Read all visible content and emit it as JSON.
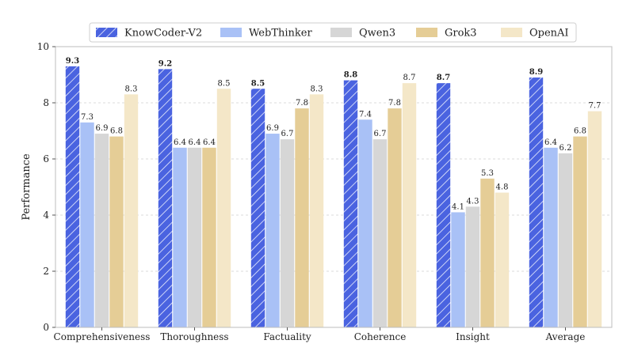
{
  "chart_data": {
    "type": "bar",
    "title": "",
    "xlabel": "",
    "ylabel": "Performance",
    "ylim": [
      0,
      10
    ],
    "yticks": [
      0,
      2,
      4,
      6,
      8,
      10
    ],
    "grid": "y",
    "legend_position": "top-center",
    "categories": [
      "Comprehensiveness",
      "Thoroughness",
      "Factuality",
      "Coherence",
      "Insight",
      "Average"
    ],
    "series": [
      {
        "name": "KnowCoder-V2",
        "color": "#4a63e0",
        "hatched": true,
        "bold_labels": true,
        "values": [
          9.3,
          9.2,
          8.5,
          8.8,
          8.7,
          8.9
        ]
      },
      {
        "name": "WebThinker",
        "color": "#a9c1f6",
        "hatched": false,
        "bold_labels": false,
        "values": [
          7.3,
          6.4,
          6.9,
          7.4,
          4.1,
          6.4
        ]
      },
      {
        "name": "Qwen3",
        "color": "#d6d6d6",
        "hatched": false,
        "bold_labels": false,
        "values": [
          6.9,
          6.4,
          6.7,
          6.7,
          4.3,
          6.2
        ]
      },
      {
        "name": "Grok3",
        "color": "#e5cd96",
        "hatched": false,
        "bold_labels": false,
        "values": [
          6.8,
          6.4,
          7.8,
          7.8,
          5.3,
          6.8
        ]
      },
      {
        "name": "OpenAI",
        "color": "#f4e7c8",
        "hatched": false,
        "bold_labels": false,
        "values": [
          8.3,
          8.5,
          8.3,
          8.7,
          4.8,
          7.7
        ]
      }
    ]
  }
}
